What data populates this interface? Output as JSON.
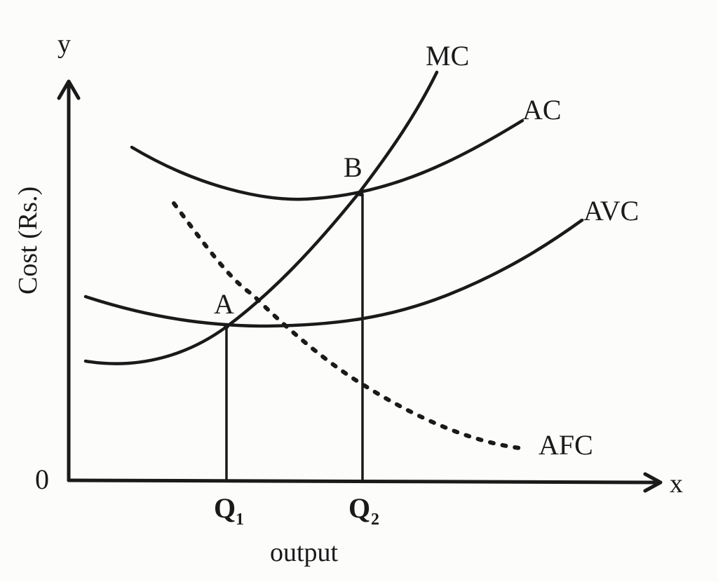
{
  "diagram": {
    "axis_y_letter": "y",
    "axis_x_letter": "x",
    "origin_label": "0",
    "y_axis_label": "Cost (Rs.)",
    "x_axis_label": "output",
    "q1_label": "Q",
    "q1_sub": "1",
    "q2_label": "Q",
    "q2_sub": "2",
    "point_a": "A",
    "point_b": "B",
    "curves": {
      "mc": "MC",
      "ac": "AC",
      "avc": "AVC",
      "afc": "AFC"
    }
  }
}
